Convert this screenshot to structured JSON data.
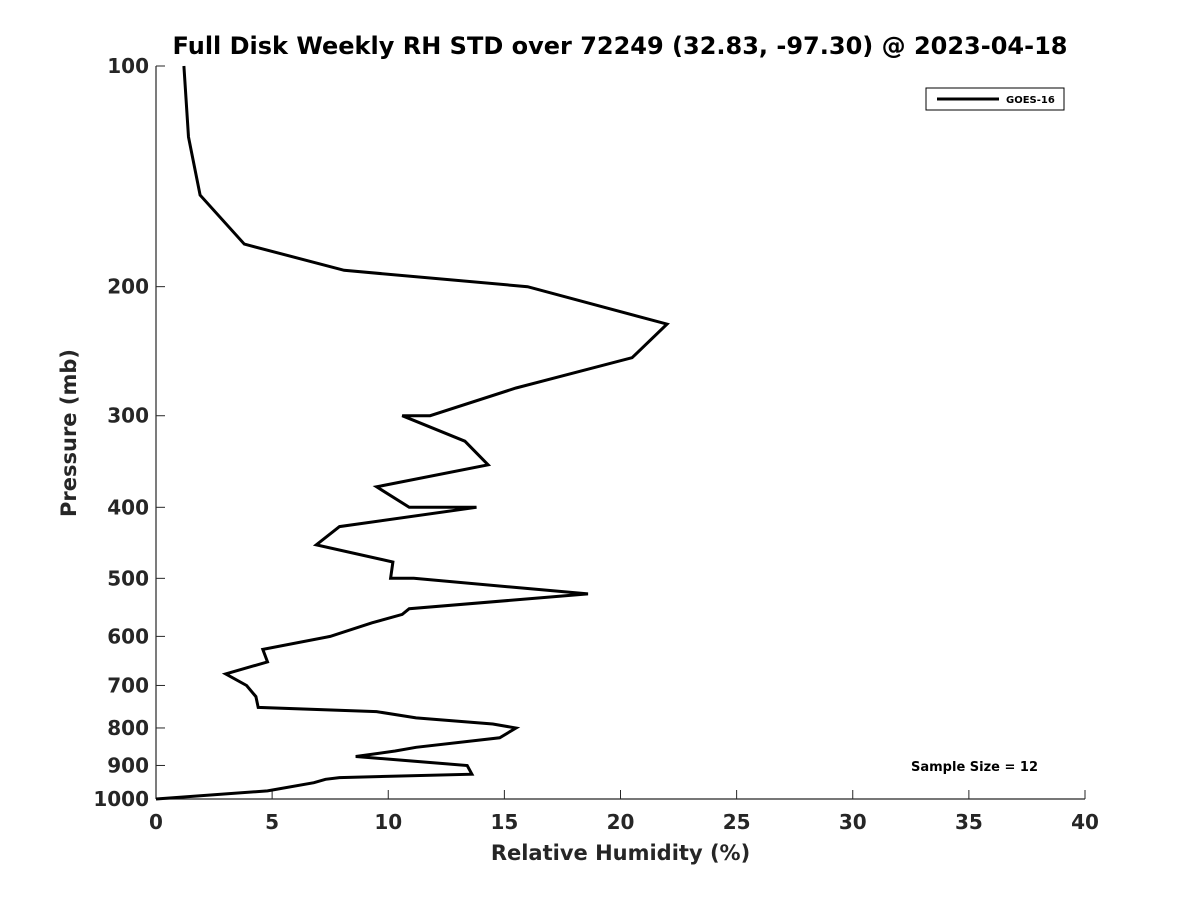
{
  "chart_data": {
    "type": "line",
    "title": "Full Disk Weekly RH STD over 72249 (32.83, -97.30) @ 2023-04-18",
    "xlabel": "Relative Humidity (%)",
    "ylabel": "Pressure (mb)",
    "xlim": [
      0,
      40
    ],
    "ylim": [
      100,
      1000
    ],
    "y_scale": "log",
    "y_reversed": true,
    "x_ticks": [
      0,
      5,
      10,
      15,
      20,
      25,
      30,
      35,
      40
    ],
    "y_ticks": [
      100,
      200,
      300,
      400,
      500,
      600,
      700,
      800,
      900,
      1000
    ],
    "grid": false,
    "legend_position": "top-right",
    "series": [
      {
        "name": "GOES-16",
        "color": "#000000",
        "points": [
          [
            1.2,
            100
          ],
          [
            1.4,
            125
          ],
          [
            1.9,
            150
          ],
          [
            3.8,
            175
          ],
          [
            8.1,
            190
          ],
          [
            16.0,
            200
          ],
          [
            22.0,
            225
          ],
          [
            20.5,
            250
          ],
          [
            15.5,
            275
          ],
          [
            11.8,
            300
          ],
          [
            10.6,
            300
          ],
          [
            13.3,
            325
          ],
          [
            14.3,
            350
          ],
          [
            9.5,
            375
          ],
          [
            10.9,
            400
          ],
          [
            13.8,
            400
          ],
          [
            7.9,
            425
          ],
          [
            6.9,
            450
          ],
          [
            10.2,
            475
          ],
          [
            10.1,
            500
          ],
          [
            11.1,
            500
          ],
          [
            18.6,
            525
          ],
          [
            10.9,
            550
          ],
          [
            10.6,
            560
          ],
          [
            9.3,
            575
          ],
          [
            7.5,
            600
          ],
          [
            4.6,
            625
          ],
          [
            4.8,
            650
          ],
          [
            3.0,
            675
          ],
          [
            3.9,
            700
          ],
          [
            4.3,
            725
          ],
          [
            4.4,
            750
          ],
          [
            9.5,
            760
          ],
          [
            11.2,
            775
          ],
          [
            14.5,
            790
          ],
          [
            15.5,
            800
          ],
          [
            14.8,
            825
          ],
          [
            11.2,
            850
          ],
          [
            10.3,
            860
          ],
          [
            8.6,
            875
          ],
          [
            13.4,
            900
          ],
          [
            13.6,
            925
          ],
          [
            7.9,
            935
          ],
          [
            7.3,
            940
          ],
          [
            6.8,
            950
          ],
          [
            4.8,
            975
          ],
          [
            0,
            1000
          ]
        ]
      }
    ],
    "annotations": [
      "Sample Size = 12"
    ]
  }
}
